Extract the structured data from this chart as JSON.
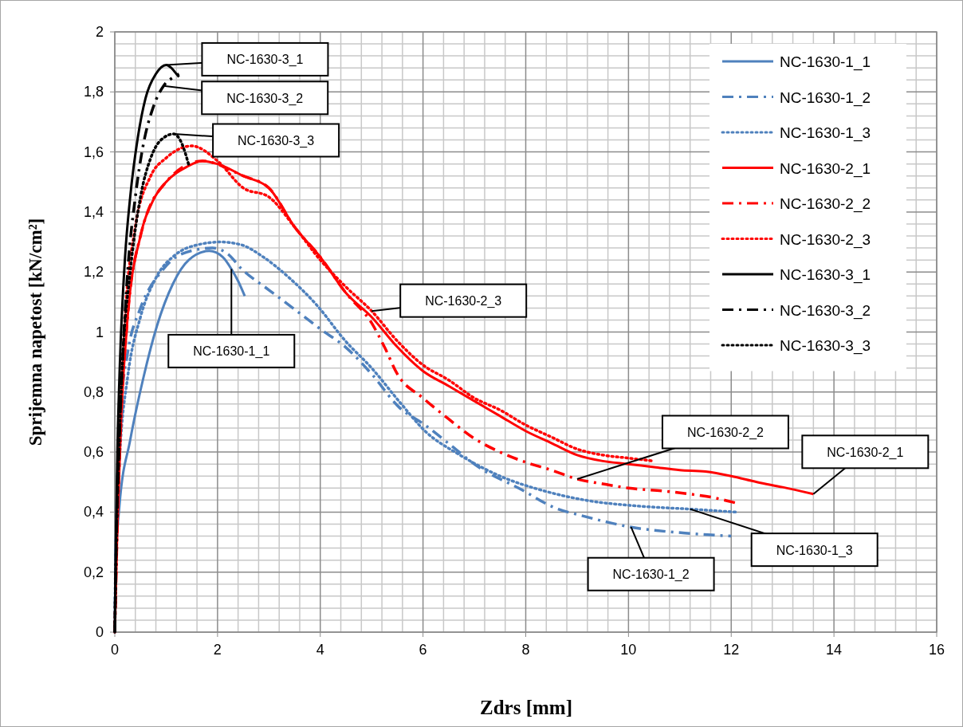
{
  "chart_data": {
    "type": "line",
    "xlabel": "Zdrs [mm]",
    "ylabel": "Sprijemna napetost [kN/cm²]",
    "xlim": [
      0,
      16
    ],
    "xticks": [
      0,
      2,
      4,
      6,
      8,
      10,
      12,
      14,
      16
    ],
    "ylim": [
      0,
      2
    ],
    "yticks": [
      0,
      {
        "value": 0.2,
        "label": "0,2"
      },
      {
        "value": 0.4,
        "label": "0,4"
      },
      {
        "value": 0.6,
        "label": "0,6"
      },
      {
        "value": 0.8,
        "label": "0,8"
      },
      1,
      {
        "value": 1.2,
        "label": "1,2"
      },
      {
        "value": 1.4,
        "label": "1,4"
      },
      {
        "value": 1.6,
        "label": "1,6"
      },
      {
        "value": 1.8,
        "label": "1,8"
      },
      2
    ],
    "grid": true,
    "legend": "top right",
    "marker": "none",
    "series": [
      {
        "name": "NC-1630-1_1",
        "color": "#4f81bd",
        "line_style": "solid",
        "x": [
          0,
          0.01,
          0.09,
          0.3,
          0.56,
          0.82,
          1.13,
          1.44,
          1.84,
          2.1,
          2.27,
          2.4,
          2.53
        ],
        "values": [
          0,
          0.19,
          0.42,
          0.64,
          0.85,
          1.02,
          1.16,
          1.24,
          1.27,
          1.25,
          1.21,
          1.17,
          1.12
        ]
      },
      {
        "name": "NC-1630-1_2",
        "color": "#4f81bd",
        "line_style": "dashed",
        "x": [
          0,
          0.02,
          0.05,
          0.12,
          0.25,
          0.5,
          0.9,
          1.3,
          1.9,
          2.2,
          2.47,
          3.0,
          3.62,
          4.0,
          4.49,
          5.0,
          5.53,
          6.04,
          6.56,
          7.08,
          7.86,
          8.63,
          9.05,
          10.05,
          11.1,
          12.0
        ],
        "values": [
          0,
          0.25,
          0.5,
          0.75,
          0.93,
          1.08,
          1.2,
          1.26,
          1.28,
          1.26,
          1.21,
          1.14,
          1.06,
          1.01,
          0.95,
          0.86,
          0.75,
          0.69,
          0.62,
          0.55,
          0.48,
          0.41,
          0.39,
          0.35,
          0.33,
          0.32
        ]
      },
      {
        "name": "NC-1630-1_3",
        "color": "#4f81bd",
        "line_style": "dotted",
        "x": [
          0,
          0.02,
          0.1,
          0.25,
          0.5,
          0.8,
          1.2,
          1.6,
          2.06,
          2.47,
          2.89,
          3.4,
          3.93,
          4.49,
          5.0,
          5.53,
          6.04,
          6.72,
          7.5,
          8.37,
          9.15,
          10.2,
          11.2,
          12.1
        ],
        "values": [
          0,
          0.3,
          0.6,
          0.85,
          1.05,
          1.18,
          1.26,
          1.29,
          1.3,
          1.29,
          1.25,
          1.18,
          1.09,
          0.97,
          0.88,
          0.77,
          0.67,
          0.59,
          0.52,
          0.47,
          0.44,
          0.42,
          0.41,
          0.4
        ]
      },
      {
        "name": "NC-1630-2_1",
        "color": "#ff0000",
        "line_style": "solid",
        "x": [
          0,
          0.05,
          0.12,
          0.25,
          0.5,
          0.75,
          1,
          1.4,
          1.7,
          2,
          2.5,
          3,
          3.5,
          4,
          4.5,
          5,
          5.5,
          6,
          6.5,
          7,
          7.5,
          8,
          8.5,
          9,
          9.5,
          10,
          10.5,
          11,
          11.5,
          12,
          12.5,
          13,
          13.6
        ],
        "values": [
          0,
          0.35,
          0.7,
          1.05,
          1.32,
          1.44,
          1.5,
          1.55,
          1.57,
          1.56,
          1.52,
          1.48,
          1.35,
          1.25,
          1.13,
          1.05,
          0.95,
          0.87,
          0.82,
          0.77,
          0.72,
          0.67,
          0.63,
          0.59,
          0.57,
          0.56,
          0.55,
          0.54,
          0.535,
          0.52,
          0.5,
          0.483,
          0.46
        ]
      },
      {
        "name": "NC-1630-2_2",
        "color": "#ff0000",
        "line_style": "dashed",
        "x": [
          0,
          0.05,
          0.12,
          0.25,
          0.5,
          1,
          1.7,
          2.5,
          3,
          3.5,
          4,
          4.5,
          5,
          5.25,
          5.5,
          6,
          6.5,
          7,
          7.5,
          8,
          8.5,
          9,
          9.5,
          10,
          10.7,
          11.2,
          11.6,
          12.1
        ],
        "values": [
          0,
          0.35,
          0.7,
          1.05,
          1.32,
          1.5,
          1.57,
          1.52,
          1.48,
          1.35,
          1.25,
          1.13,
          1.03,
          0.95,
          0.86,
          0.78,
          0.71,
          0.645,
          0.6,
          0.566,
          0.54,
          0.51,
          0.494,
          0.48,
          0.47,
          0.46,
          0.45,
          0.43
        ]
      },
      {
        "name": "NC-1630-2_3",
        "color": "#ff0000",
        "line_style": "dotted",
        "x": [
          0,
          0.04,
          0.1,
          0.2,
          0.4,
          0.7,
          1,
          1.5,
          2,
          2.5,
          3,
          3.5,
          4,
          4.5,
          5,
          5.5,
          6,
          6.5,
          7,
          7.5,
          8,
          8.5,
          9,
          9.5,
          10,
          10.5
        ],
        "values": [
          0,
          0.35,
          0.7,
          1.05,
          1.35,
          1.52,
          1.58,
          1.62,
          1.57,
          1.48,
          1.45,
          1.35,
          1.24,
          1.15,
          1.07,
          0.97,
          0.89,
          0.84,
          0.78,
          0.74,
          0.69,
          0.65,
          0.61,
          0.59,
          0.58,
          0.57
        ]
      },
      {
        "name": "NC-1630-3_1",
        "color": "#000000",
        "line_style": "solid",
        "x": [
          0,
          0.02,
          0.05,
          0.1,
          0.2,
          0.3,
          0.45,
          0.6,
          0.8,
          1.0,
          1.1,
          1.2,
          1.25
        ],
        "values": [
          0,
          0.3,
          0.6,
          0.9,
          1.25,
          1.45,
          1.65,
          1.78,
          1.86,
          1.89,
          1.88,
          1.86,
          1.85
        ]
      },
      {
        "name": "NC-1630-3_2",
        "color": "#000000",
        "line_style": "dashed",
        "x": [
          0,
          0.03,
          0.08,
          0.15,
          0.25,
          0.4,
          0.55,
          0.75,
          0.95,
          1.15,
          1.25
        ],
        "values": [
          0,
          0.3,
          0.6,
          0.9,
          1.2,
          1.45,
          1.62,
          1.75,
          1.82,
          1.85,
          1.86
        ]
      },
      {
        "name": "NC-1630-3_3",
        "color": "#000000",
        "line_style": "dotted",
        "x": [
          0,
          0.03,
          0.08,
          0.15,
          0.3,
          0.5,
          0.7,
          0.9,
          1.15,
          1.3,
          1.45
        ],
        "values": [
          0,
          0.3,
          0.6,
          0.9,
          1.2,
          1.45,
          1.58,
          1.64,
          1.66,
          1.63,
          1.55
        ]
      }
    ],
    "annotations": [
      {
        "text": "NC-1630-3_1",
        "x": 1.0,
        "y": 1.89
      },
      {
        "text": "NC-1630-3_2",
        "x": 0.95,
        "y": 1.82
      },
      {
        "text": "NC-1630-3_3",
        "x": 1.15,
        "y": 1.66
      },
      {
        "text": "NC-1630-1_1",
        "x": 2.27,
        "y": 1.21
      },
      {
        "text": "NC-1630-2_3",
        "x": 5,
        "y": 1.07
      },
      {
        "text": "NC-1630-2_2",
        "x": 9,
        "y": 0.51
      },
      {
        "text": "NC-1630-2_1",
        "x": 13.6,
        "y": 0.46
      },
      {
        "text": "NC-1630-1_3",
        "x": 11.2,
        "y": 0.41
      },
      {
        "text": "NC-1630-1_2",
        "x": 10.05,
        "y": 0.35
      }
    ]
  }
}
